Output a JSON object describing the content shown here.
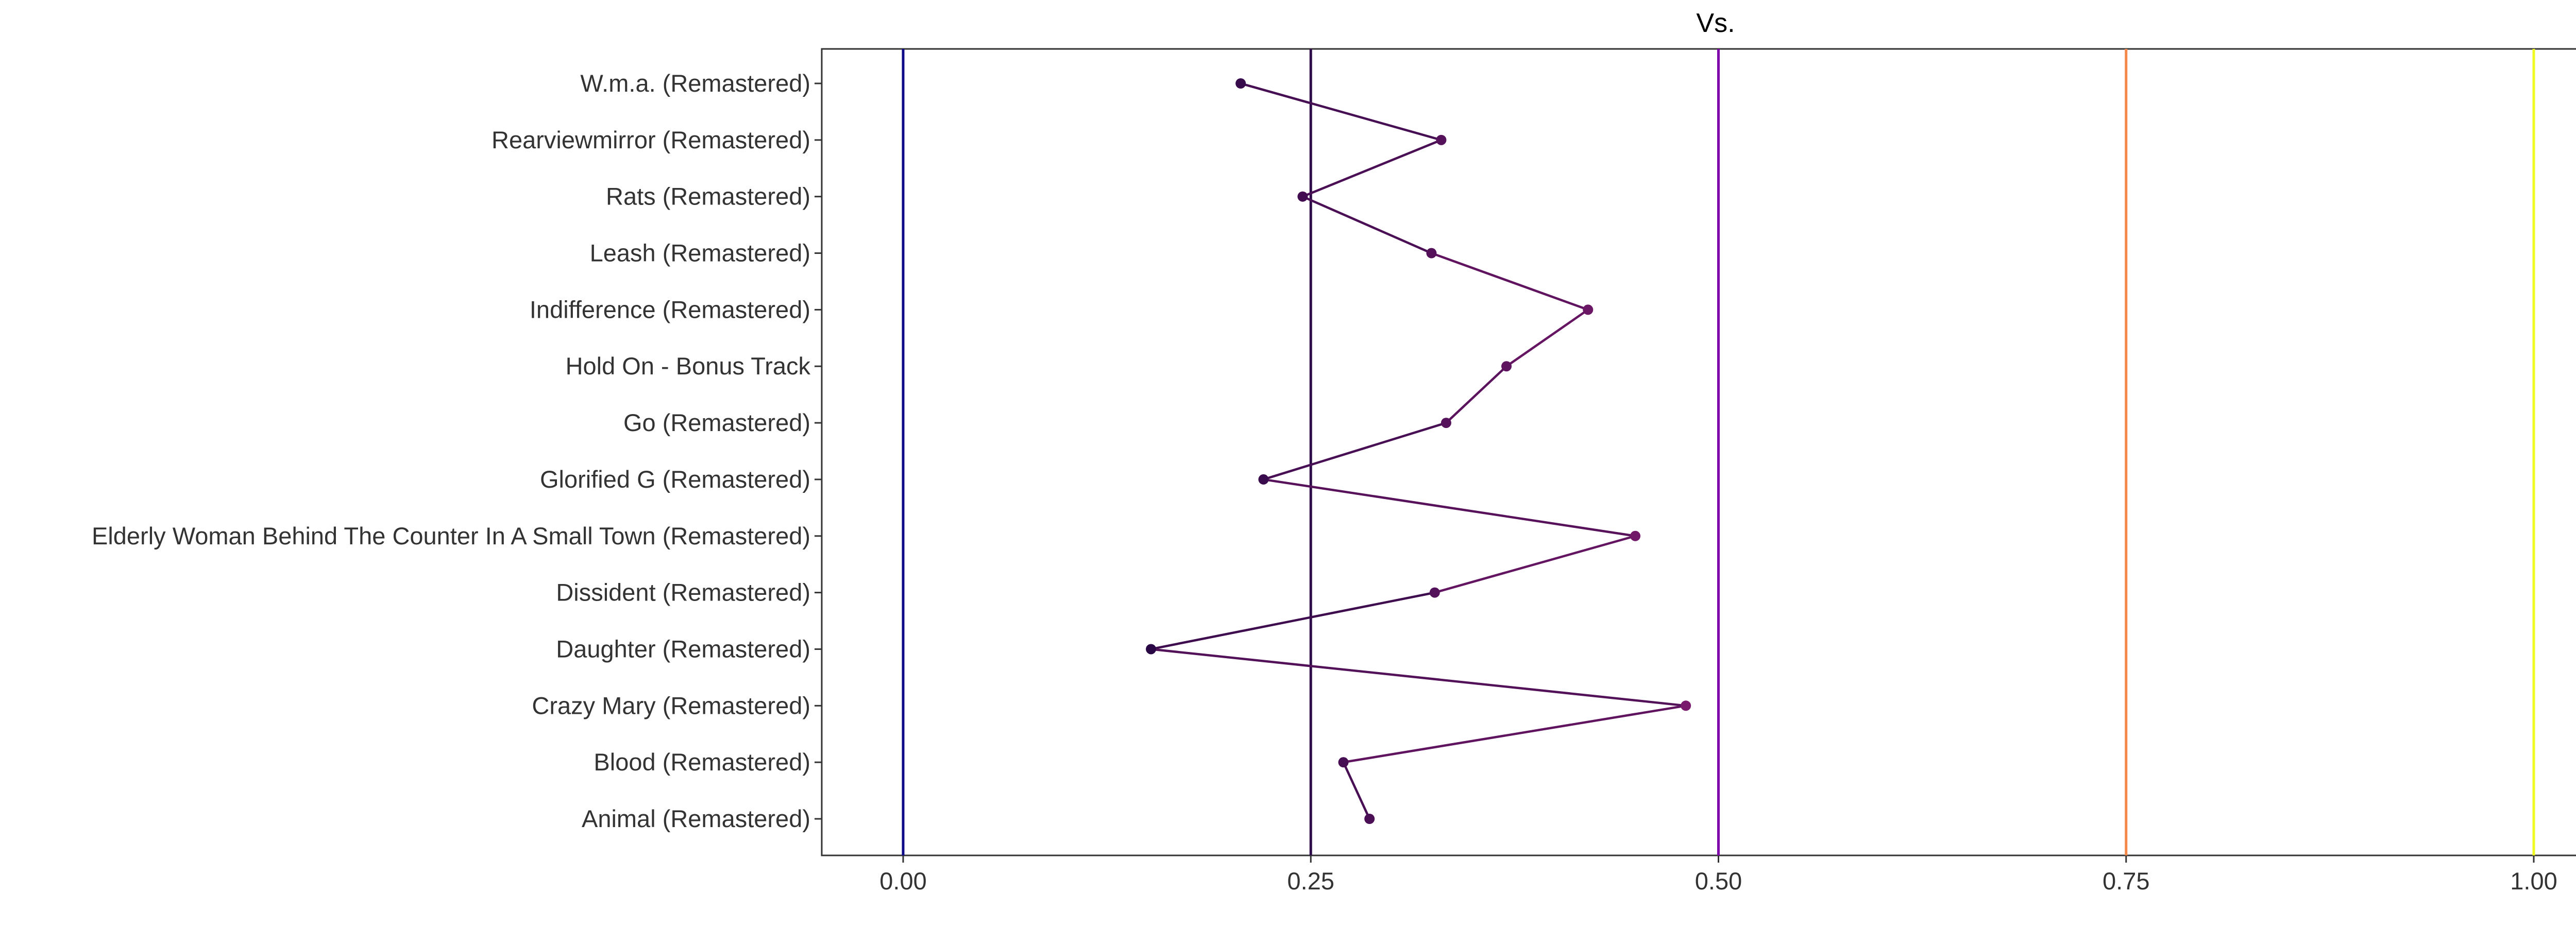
{
  "chart_data": {
    "type": "line",
    "title": "Vs.",
    "xlabel": "",
    "ylabel": "",
    "xlim": [
      -0.025,
      1.025
    ],
    "xticks": [
      0.0,
      0.25,
      0.5,
      0.75,
      1.0
    ],
    "xtick_labels": [
      "0.00",
      "0.25",
      "0.50",
      "0.75",
      "1.00"
    ],
    "grid": false,
    "categories": [
      "W.m.a. (Remastered)",
      "Rearviewmirror (Remastered)",
      "Rats (Remastered)",
      "Leash (Remastered)",
      "Indifference (Remastered)",
      "Hold On - Bonus Track",
      "Go (Remastered)",
      "Glorified G (Remastered)",
      "Elderly Woman Behind The Counter In A Small Town (Remastered)",
      "Dissident (Remastered)",
      "Daughter (Remastered)",
      "Crazy Mary (Remastered)",
      "Blood (Remastered)",
      "Animal (Remastered)"
    ],
    "values": [
      0.207,
      0.33,
      0.245,
      0.324,
      0.42,
      0.37,
      0.333,
      0.221,
      0.449,
      0.326,
      0.152,
      0.48,
      0.27,
      0.286
    ],
    "reference_lines": [
      {
        "x": 0.0,
        "color": "#0D0887"
      },
      {
        "x": 0.25,
        "color": "#2D0C49"
      },
      {
        "x": 0.5,
        "color": "#7E03A8"
      },
      {
        "x": 0.75,
        "color": "#F48849"
      },
      {
        "x": 1.0,
        "color": "#F0F921"
      }
    ],
    "colormap": "viridis-magma"
  }
}
